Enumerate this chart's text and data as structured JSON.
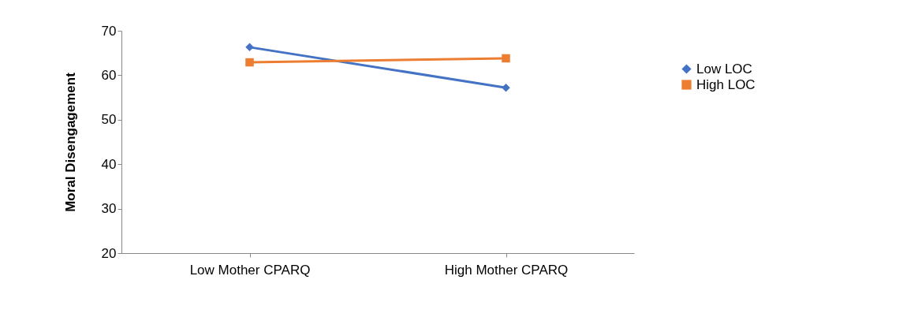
{
  "chart_data": {
    "type": "line",
    "ylabel": "Moral Disengagement",
    "categories": [
      "Low Mother CPARQ",
      "High Mother CPARQ"
    ],
    "series": [
      {
        "name": "Low LOC",
        "color": "#4472c4",
        "values": [
          66.3,
          57.2
        ],
        "marker": "diamond"
      },
      {
        "name": "High LOC",
        "color": "#ed7d31",
        "values": [
          62.9,
          63.8
        ],
        "marker": "square"
      }
    ],
    "ylim": [
      20,
      70
    ],
    "yticks": [
      20,
      30,
      40,
      50,
      60,
      70
    ],
    "grid": false,
    "legend": "right"
  }
}
